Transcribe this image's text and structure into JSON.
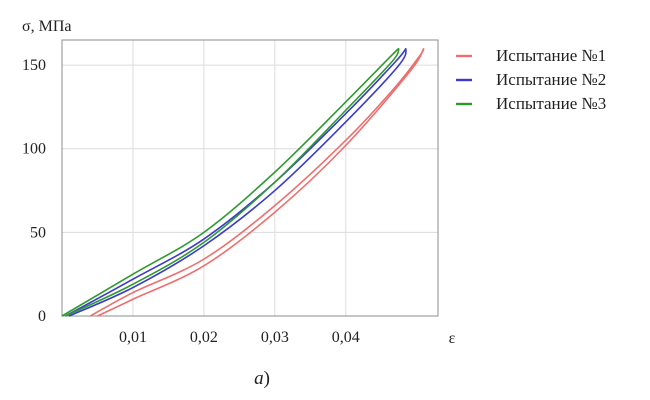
{
  "chart_data": {
    "type": "line",
    "ylabel": "σ, МПа",
    "xlabel": "ε",
    "caption_letter": "а",
    "caption_paren": ")",
    "xlim": [
      0,
      0.053
    ],
    "ylim": [
      0,
      165
    ],
    "x_ticks": [
      {
        "value": 0.01,
        "label": "0,01"
      },
      {
        "value": 0.02,
        "label": "0,02"
      },
      {
        "value": 0.03,
        "label": "0,03"
      },
      {
        "value": 0.04,
        "label": "0,04"
      }
    ],
    "y_ticks": [
      {
        "value": 0,
        "label": "0"
      },
      {
        "value": 50,
        "label": "50"
      },
      {
        "value": 100,
        "label": "100"
      },
      {
        "value": 150,
        "label": "150"
      }
    ],
    "grid": true,
    "legend": "right",
    "series": [
      {
        "name": "Испытание №1",
        "color": "#ee6e6e",
        "loading": [
          [
            0.004,
            0
          ],
          [
            0.01,
            14
          ],
          [
            0.02,
            34
          ],
          [
            0.03,
            66
          ],
          [
            0.04,
            105
          ],
          [
            0.047,
            137
          ],
          [
            0.0505,
            156
          ],
          [
            0.051,
            160
          ]
        ],
        "unloading": [
          [
            0.051,
            160
          ],
          [
            0.049,
            146
          ],
          [
            0.04,
            102
          ],
          [
            0.03,
            62
          ],
          [
            0.02,
            30
          ],
          [
            0.01,
            10
          ],
          [
            0.005,
            0
          ]
        ]
      },
      {
        "name": "Испытание №2",
        "color": "#3a3acc",
        "loading": [
          [
            0.0005,
            0
          ],
          [
            0.01,
            22
          ],
          [
            0.02,
            46
          ],
          [
            0.03,
            80
          ],
          [
            0.04,
            121
          ],
          [
            0.047,
            152
          ],
          [
            0.0485,
            160
          ]
        ],
        "unloading": [
          [
            0.0485,
            160
          ],
          [
            0.0475,
            150
          ],
          [
            0.04,
            116
          ],
          [
            0.03,
            75
          ],
          [
            0.02,
            42
          ],
          [
            0.01,
            17
          ],
          [
            0.001,
            0
          ]
        ]
      },
      {
        "name": "Испытание №3",
        "color": "#2e9a2e",
        "loading": [
          [
            0,
            0
          ],
          [
            0.01,
            25
          ],
          [
            0.02,
            50
          ],
          [
            0.03,
            86
          ],
          [
            0.04,
            128
          ],
          [
            0.0465,
            156
          ],
          [
            0.0475,
            160
          ]
        ],
        "unloading": [
          [
            0.0475,
            160
          ],
          [
            0.0465,
            152
          ],
          [
            0.04,
            123
          ],
          [
            0.03,
            80
          ],
          [
            0.02,
            44
          ],
          [
            0.01,
            19
          ],
          [
            0.0005,
            0
          ]
        ]
      }
    ]
  }
}
